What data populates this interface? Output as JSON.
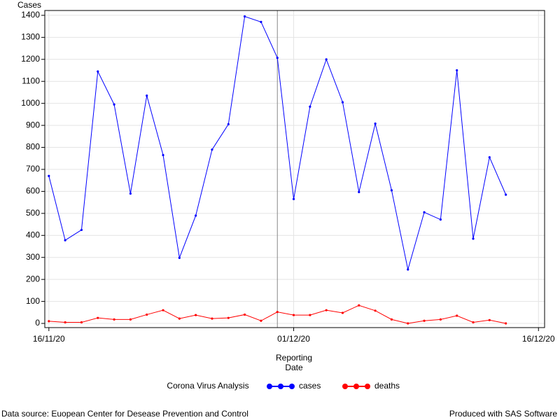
{
  "chart_data": {
    "type": "line",
    "y_label": "Cases",
    "x_label": "Reporting Date",
    "legend_title": "Corona Virus Analysis",
    "x": [
      "2020-11-16",
      "2020-11-17",
      "2020-11-18",
      "2020-11-19",
      "2020-11-20",
      "2020-11-21",
      "2020-11-22",
      "2020-11-23",
      "2020-11-24",
      "2020-11-25",
      "2020-11-26",
      "2020-11-27",
      "2020-11-28",
      "2020-11-29",
      "2020-11-30",
      "2020-12-01",
      "2020-12-02",
      "2020-12-03",
      "2020-12-04",
      "2020-12-05",
      "2020-12-06",
      "2020-12-07",
      "2020-12-08",
      "2020-12-09",
      "2020-12-10",
      "2020-12-11",
      "2020-12-12",
      "2020-12-13",
      "2020-12-14"
    ],
    "series": [
      {
        "name": "cases",
        "color": "#0000ff",
        "values": [
          670,
          378,
          425,
          1145,
          995,
          590,
          1035,
          765,
          298,
          490,
          790,
          905,
          1395,
          1370,
          1207,
          565,
          985,
          1200,
          1005,
          597,
          908,
          605,
          245,
          505,
          472,
          1150,
          385,
          755,
          585
        ]
      },
      {
        "name": "deaths",
        "color": "#ff0000",
        "values": [
          10,
          5,
          5,
          25,
          18,
          18,
          40,
          60,
          22,
          38,
          22,
          25,
          40,
          12,
          52,
          38,
          38,
          60,
          48,
          82,
          58,
          18,
          0,
          12,
          18,
          35,
          5,
          15,
          0
        ]
      }
    ],
    "reference_x": "2020-11-30",
    "xlim": [
      "2020-11-15T18:00:00Z",
      "2020-12-16T09:00:00Z"
    ],
    "xticks": [
      {
        "value": "2020-11-16",
        "label": "16/11/20"
      },
      {
        "value": "2020-12-01",
        "label": "01/12/20"
      },
      {
        "value": "2020-12-16",
        "label": "16/12/20"
      }
    ],
    "ylim": [
      -19,
      1422
    ],
    "yticks": [
      0,
      100,
      200,
      300,
      400,
      500,
      600,
      700,
      800,
      900,
      1000,
      1100,
      1200,
      1300,
      1400
    ],
    "grid": true,
    "footnote_left": "Data source: Euopean Center for Desease Prevention and Control",
    "footnote_right": "Produced with SAS Software"
  }
}
